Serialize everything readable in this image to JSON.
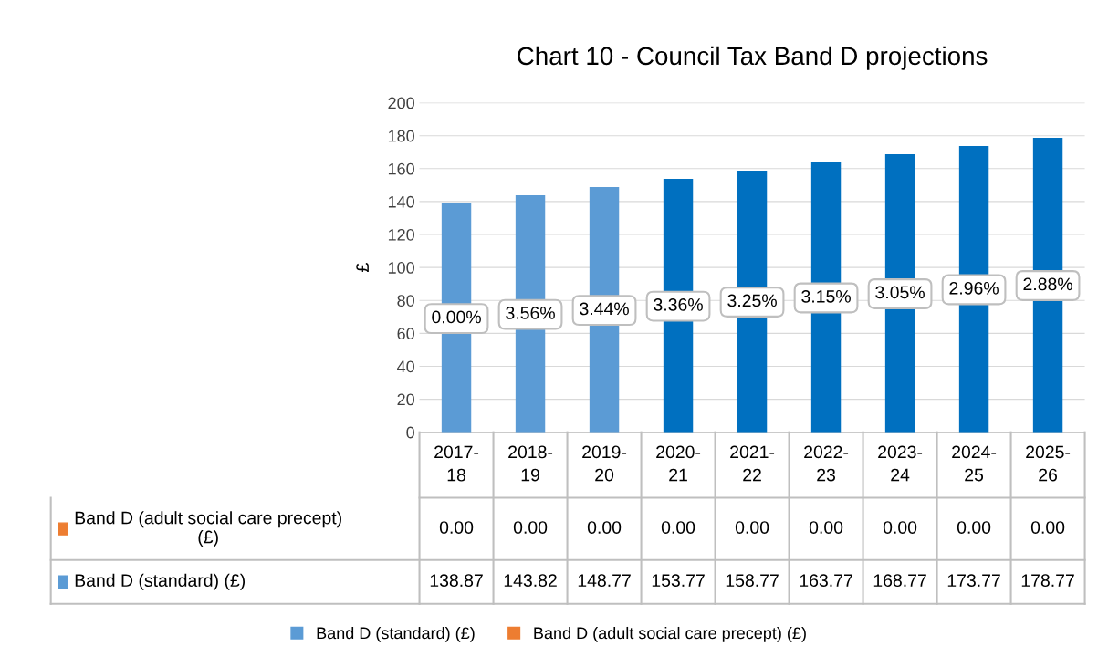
{
  "chart_data": {
    "type": "bar",
    "title": "Chart 10 - Council Tax Band D projections",
    "ylabel": "£",
    "categories": [
      "2017-18",
      "2018-19",
      "2019-20",
      "2020-21",
      "2021-22",
      "2022-23",
      "2023-24",
      "2024-25",
      "2025-26"
    ],
    "stacked": true,
    "series": [
      {
        "name": "Band D (standard) (£)",
        "color": "#5b9bd5",
        "colors": [
          "#5b9bd5",
          "#5b9bd5",
          "#5b9bd5",
          "#0070c0",
          "#0070c0",
          "#0070c0",
          "#0070c0",
          "#0070c0",
          "#0070c0"
        ],
        "values": [
          138.87,
          143.82,
          148.77,
          153.77,
          158.77,
          163.77,
          168.77,
          173.77,
          178.77
        ],
        "value_labels": [
          "138.87",
          "143.82",
          "148.77",
          "153.77",
          "158.77",
          "163.77",
          "168.77",
          "173.77",
          "178.77"
        ]
      },
      {
        "name": "Band D (adult social care precept) (£)",
        "color": "#ed7d31",
        "values": [
          0,
          0,
          0,
          0,
          0,
          0,
          0,
          0,
          0
        ],
        "value_labels": [
          "0.00",
          "0.00",
          "0.00",
          "0.00",
          "0.00",
          "0.00",
          "0.00",
          "0.00",
          "0.00"
        ]
      }
    ],
    "annotations": [
      "0.00%",
      "3.56%",
      "3.44%",
      "3.36%",
      "3.25%",
      "3.15%",
      "3.05%",
      "2.96%",
      "2.88%"
    ],
    "ylim": [
      0,
      200
    ],
    "yticks": [
      0,
      20,
      40,
      60,
      80,
      100,
      120,
      140,
      160,
      180,
      200
    ],
    "grid": "y",
    "legend": "bottom"
  }
}
